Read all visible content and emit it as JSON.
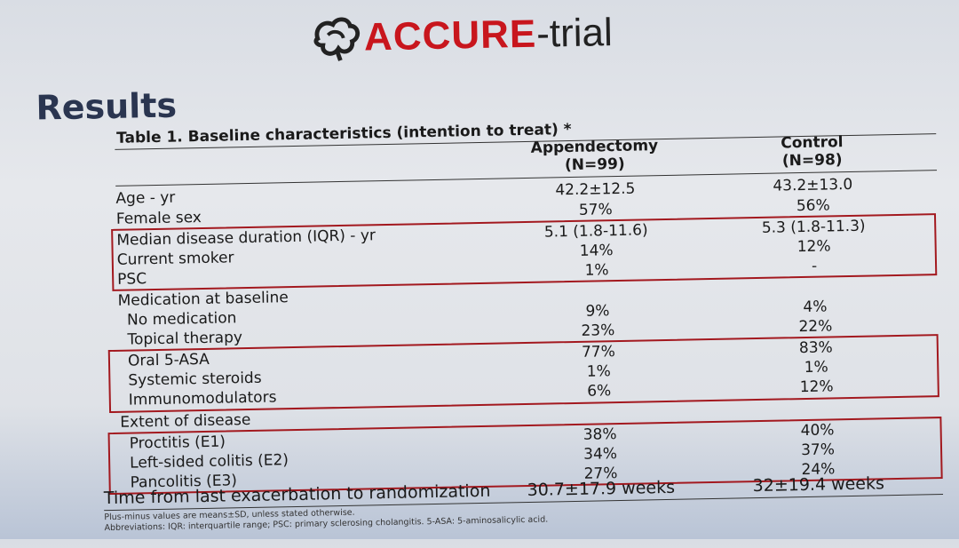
{
  "logo": {
    "accure": "ACCURE",
    "trial": "-trial"
  },
  "heading": "Results",
  "table": {
    "caption": "Table 1. Baseline characteristics (intention to treat) *",
    "col1_name": "Appendectomy",
    "col1_n": "(N=99)",
    "col2_name": "Control",
    "col2_n": "(N=98)",
    "rows": [
      {
        "label": "Age - yr",
        "c1": "42.2±12.5",
        "c2": "43.2±13.0"
      },
      {
        "label": "Female sex",
        "c1": "57%",
        "c2": "56%"
      },
      {
        "label": "Median disease duration (IQR) - yr",
        "c1": "5.1 (1.8-11.6)",
        "c2": "5.3 (1.8-11.3)"
      },
      {
        "label": "Current smoker",
        "c1": "14%",
        "c2": "12%"
      },
      {
        "label": "PSC",
        "c1": "1%",
        "c2": "-"
      },
      {
        "label": "Medication at baseline",
        "c1": "",
        "c2": ""
      },
      {
        "label": "No medication",
        "c1": "9%",
        "c2": "4%"
      },
      {
        "label": "Topical therapy",
        "c1": "23%",
        "c2": "22%"
      },
      {
        "label": "Oral 5-ASA",
        "c1": "77%",
        "c2": "83%"
      },
      {
        "label": "Systemic steroids",
        "c1": "1%",
        "c2": "1%"
      },
      {
        "label": "Immunomodulators",
        "c1": "6%",
        "c2": "12%"
      },
      {
        "label": "Extent of disease",
        "c1": "",
        "c2": ""
      },
      {
        "label": "Proctitis (E1)",
        "c1": "38%",
        "c2": "40%"
      },
      {
        "label": "Left-sided colitis (E2)",
        "c1": "34%",
        "c2": "37%"
      },
      {
        "label": "Pancolitis (E3)",
        "c1": "27%",
        "c2": "24%"
      }
    ],
    "last_row": {
      "label": "Time from last exacerbation to randomization",
      "c1": "30.7±17.9 weeks",
      "c2": "32±19.4 weeks"
    },
    "footnote1": "Plus-minus values are means±SD, unless stated otherwise.",
    "footnote2": "Abbreviations: IQR: interquartile range; PSC: primary sclerosing cholangitis. 5-ASA: 5-aminosalicylic acid."
  },
  "colors": {
    "brand_red": "#c8161d",
    "box_red": "#a3191f",
    "heading": "#2a3550"
  }
}
